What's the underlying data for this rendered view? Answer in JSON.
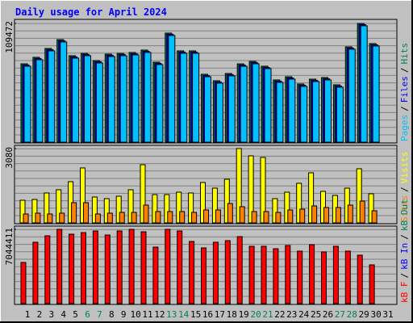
{
  "legend_separator": "/",
  "chart_data": [
    {
      "type": "bar",
      "title": "Daily usage for April 2024",
      "ylim": [
        0,
        109472
      ],
      "yticks": [
        109472
      ],
      "legend": [
        {
          "name": "Pages",
          "color": "#00c0ff"
        },
        {
          "name": "Files",
          "color": "#0000ff"
        },
        {
          "name": "Hits",
          "color": "#00805c"
        }
      ],
      "series": [
        {
          "color": "#00805c",
          "values": [
            72235,
            78194,
            86386,
            94578,
            79683,
            81917,
            75215,
            81172,
            81917,
            82662,
            84896,
            73725,
            100536,
            84151,
            84151,
            62555,
            56597,
            63300,
            72190,
            74470,
            70002,
            57342,
            60321,
            53618,
            58087,
            59576,
            52874,
            87873,
            109472,
            90852,
            null
          ]
        },
        {
          "color": "#0000ff",
          "values": [
            71135,
            77094,
            85286,
            93478,
            78583,
            80817,
            74115,
            80072,
            80817,
            81562,
            83796,
            72625,
            99436,
            83051,
            83051,
            61455,
            55497,
            62200,
            71090,
            73370,
            68902,
            56242,
            59221,
            52518,
            56987,
            58476,
            51774,
            86773,
            108372,
            89752,
            null
          ]
        },
        {
          "color": "#00c0ff",
          "values": [
            70035,
            75994,
            84186,
            92378,
            77483,
            79717,
            73015,
            78972,
            79717,
            80462,
            82696,
            71525,
            98336,
            81951,
            81951,
            60355,
            54397,
            61100,
            69990,
            72270,
            67802,
            55142,
            58121,
            51418,
            55887,
            57376,
            50674,
            85673,
            107272,
            88652,
            null
          ]
        }
      ]
    },
    {
      "type": "bar",
      "ylim": [
        0,
        3080
      ],
      "yticks": [
        3080
      ],
      "legend": [
        {
          "name": "Sites",
          "color": "#ff8000"
        },
        {
          "name": "Visits",
          "color": "#ffff00"
        }
      ],
      "series": [
        {
          "color": "#ffff00",
          "values": [
            937,
            971,
            1239,
            1373,
            1707,
            2277,
            1071,
            1004,
            1105,
            1373,
            2410,
            1172,
            1172,
            1272,
            1239,
            1674,
            1440,
            1808,
            3080,
            2779,
            2712,
            1004,
            1272,
            1640,
            2076,
            1306,
            1138,
            1440,
            2243,
            1205,
            null
          ]
        },
        {
          "color": "#ff8000",
          "values": [
            368,
            402,
            368,
            402,
            837,
            837,
            368,
            402,
            435,
            435,
            737,
            469,
            469,
            469,
            435,
            536,
            536,
            803,
            670,
            469,
            469,
            435,
            536,
            569,
            703,
            636,
            636,
            737,
            904,
            502,
            null
          ]
        }
      ]
    },
    {
      "type": "bar",
      "ylim": [
        0,
        7044411
      ],
      "yticks": [
        7044411
      ],
      "legend": [
        {
          "name": "kB F",
          "color": "#ff0000"
        },
        {
          "name": "kB In",
          "color": "#0000ff"
        },
        {
          "name": "kB Out",
          "color": "#00805c"
        }
      ],
      "categories": [
        "1",
        "2",
        "3",
        "4",
        "5",
        "6",
        "7",
        "8",
        "9",
        "10",
        "11",
        "12",
        "13",
        "14",
        "15",
        "16",
        "17",
        "18",
        "19",
        "20",
        "21",
        "22",
        "23",
        "24",
        "25",
        "26",
        "27",
        "28",
        "29",
        "30",
        "31"
      ],
      "category_colors": [
        "#000000",
        "#000000",
        "#000000",
        "#000000",
        "#000000",
        "#00805c",
        "#00805c",
        "#000000",
        "#000000",
        "#000000",
        "#000000",
        "#000000",
        "#00805c",
        "#00805c",
        "#000000",
        "#000000",
        "#000000",
        "#000000",
        "#000000",
        "#00805c",
        "#00805c",
        "#000000",
        "#000000",
        "#000000",
        "#000000",
        "#000000",
        "#00805c",
        "#00805c",
        "#000000",
        "#000000",
        "#000000"
      ],
      "series": [
        {
          "color": "#ff0000",
          "values": [
            3905070,
            5819320,
            6431880,
            7044411,
            6585020,
            6738160,
            6891300,
            6508450,
            6891300,
            7044411,
            6814730,
            5359900,
            7044411,
            6891300,
            5895890,
            5283330,
            5819320,
            5972460,
            6355310,
            5436470,
            5436470,
            5206760,
            5513040,
            4977050,
            5589610,
            4900480,
            5436470,
            4977050,
            4594200,
            3675360,
            null
          ]
        }
      ]
    }
  ]
}
